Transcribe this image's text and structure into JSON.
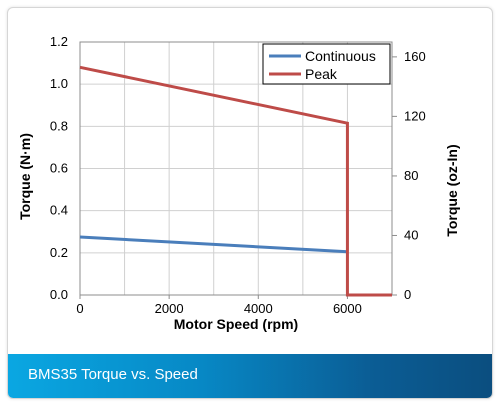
{
  "caption": "BMS35 Torque vs. Speed",
  "chart_data": {
    "type": "line",
    "xlabel": "Motor Speed (rpm)",
    "ylabel": "Torque (N·m)",
    "y2label": "Torque (oz-In)",
    "xlim": [
      0,
      7000
    ],
    "ylim": [
      0,
      1.2
    ],
    "y2lim": [
      0,
      170
    ],
    "x_ticks": [
      "0",
      "2000",
      "4000",
      "6000"
    ],
    "y_ticks": [
      "0.0",
      "0.2",
      "0.4",
      "0.6",
      "0.8",
      "1.0",
      "1.2"
    ],
    "y2_ticks": [
      "0",
      "40",
      "80",
      "120",
      "160"
    ],
    "grid": true,
    "legend": "top-right",
    "series": [
      {
        "name": "Continuous",
        "color": "#4a7ebb",
        "x": [
          0,
          6000
        ],
        "y": [
          0.275,
          0.205
        ]
      },
      {
        "name": "Peak",
        "color": "#be4b48",
        "x": [
          0,
          6000,
          6000,
          7000
        ],
        "y": [
          1.08,
          0.815,
          0.0,
          0.0
        ]
      }
    ]
  }
}
